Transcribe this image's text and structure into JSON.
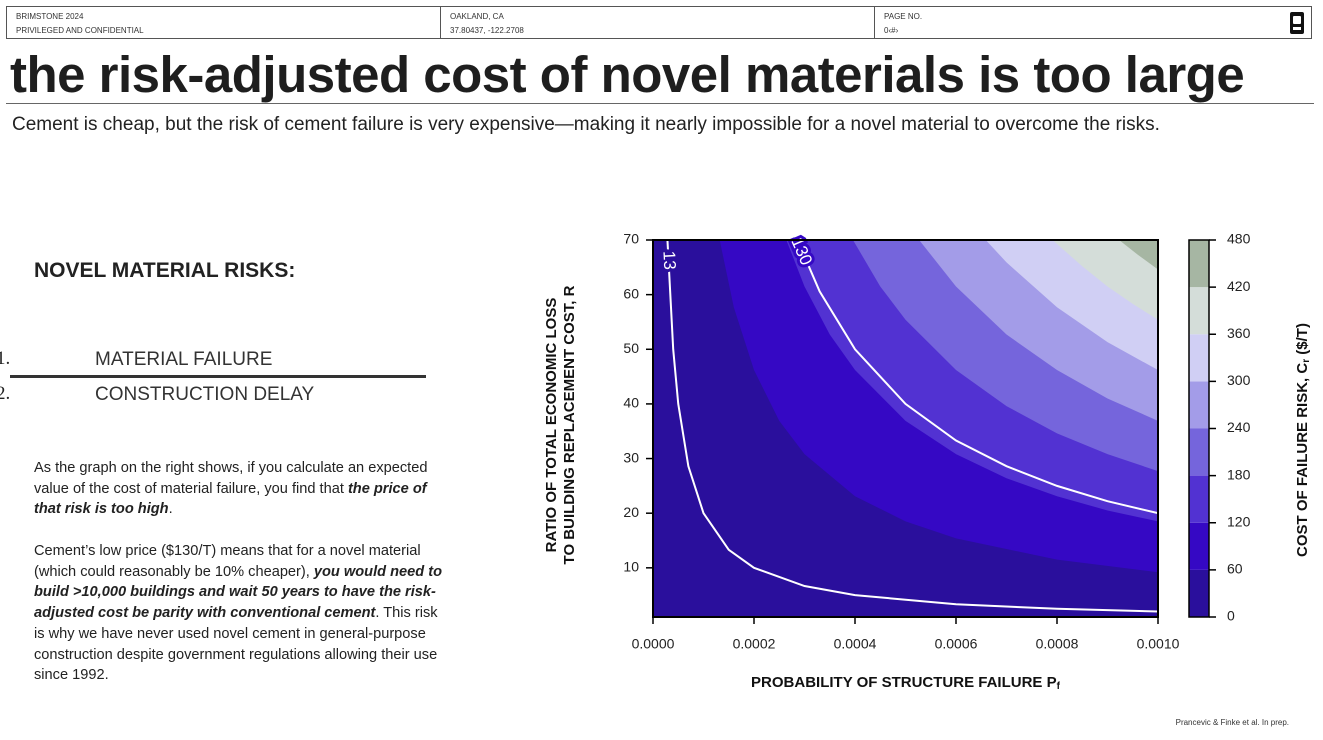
{
  "header": {
    "cells": [
      [
        "BRIMSTONE 2024",
        "PRIVILEGED AND CONFIDENTIAL"
      ],
      [
        "OAKLAND, CA",
        "37.80437, -122.2708"
      ],
      [
        "PAGE NO.",
        "0‹#›"
      ]
    ]
  },
  "title": "the risk-adjusted cost of novel materials is too large",
  "subtitle": "Cement is cheap, but the risk of cement failure is very expensive—making it nearly impossible for a novel material to overcome the risks.",
  "risks": {
    "heading": "NOVEL MATERIAL RISKS:",
    "items": [
      {
        "number": "1.",
        "text": "MATERIAL FAILURE"
      },
      {
        "number": "2.",
        "text": "CONSTRUCTION DELAY"
      }
    ]
  },
  "paragraphs": [
    [
      {
        "text": "As the graph on the right shows, if you calculate an expected value of the cost of material failure, you find that "
      },
      {
        "text": "the price of that risk is too high",
        "bold_italic": true
      },
      {
        "text": "."
      }
    ],
    [
      {
        "text": "Cement’s low price ($130/T) means that for a novel material (which could reasonably be 10% cheaper), "
      },
      {
        "text": "you would need to build >10,000 buildings and wait 50 years to have the risk-adjusted cost be parity with conventional cement",
        "bold_italic": true
      },
      {
        "text": ". This risk is why we have never used novel cement in general-purpose construction despite government regulations allowing their use since 1992."
      }
    ]
  ],
  "footnote": "Prancevic & Finke et al. In prep.",
  "chart_data": {
    "type": "contour",
    "xlabel": {
      "text": "PROBABILITY OF STRUCTURE FAILURE P",
      "subscript": "f"
    },
    "ylabel": [
      "RATIO OF TOTAL ECONOMIC LOSS",
      "TO BUILDING REPLACEMENT COST, R"
    ],
    "xlim": [
      0,
      0.001
    ],
    "ylim": [
      1,
      70
    ],
    "xticks": [
      {
        "value": 0,
        "label": "0.0000"
      },
      0.0002,
      0.0004,
      0.0006,
      0.0008,
      {
        "value": 0.001,
        "label": "0.0010"
      }
    ],
    "yticks": [
      10,
      20,
      30,
      40,
      50,
      60,
      70
    ],
    "colorbar": {
      "label": {
        "text": "COST OF FAILURE RISK, C",
        "subscript": "r",
        "suffix": " ($/T)"
      },
      "levels": [
        0,
        60,
        120,
        180,
        240,
        300,
        360,
        420,
        480
      ],
      "colors": [
        "#2a0f9c",
        "#3508c4",
        "#5232d2",
        "#7565dc",
        "#a39ce8",
        "#d0cff4",
        "#d4ddd9",
        "#a6b6a3"
      ]
    },
    "boundaries": [
      {
        "x": [
          0.000132,
          0.00016,
          0.0002,
          0.00025,
          0.0003,
          0.0004,
          0.0005,
          0.0006,
          0.0008,
          0.001
        ],
        "y": [
          70,
          57.7,
          46.2,
          36.9,
          30.8,
          23.1,
          18.5,
          15.4,
          11.5,
          9.2
        ]
      },
      {
        "x": [
          0.000264,
          0.0003,
          0.00035,
          0.0004,
          0.0005,
          0.0006,
          0.0007,
          0.0008,
          0.0009,
          0.001
        ],
        "y": [
          70,
          61.5,
          52.7,
          46.2,
          36.9,
          30.8,
          26.4,
          23.1,
          20.5,
          18.5
        ]
      },
      {
        "x": [
          0.000396,
          0.00045,
          0.0005,
          0.0006,
          0.0007,
          0.0008,
          0.0009,
          0.001
        ],
        "y": [
          70,
          61.5,
          55.4,
          46.2,
          39.6,
          34.6,
          30.8,
          27.7
        ]
      },
      {
        "x": [
          0.000527,
          0.0006,
          0.0007,
          0.0008,
          0.0009,
          0.001
        ],
        "y": [
          70,
          61.5,
          52.7,
          46.2,
          41,
          36.9
        ]
      },
      {
        "x": [
          0.000659,
          0.0007,
          0.0008,
          0.0009,
          0.001
        ],
        "y": [
          70,
          65.9,
          57.7,
          51.3,
          46.2
        ]
      },
      {
        "x": [
          0.000791,
          0.00085,
          0.0009,
          0.00095,
          0.001
        ],
        "y": [
          70,
          65.2,
          61.5,
          58.3,
          55.4
        ]
      },
      {
        "x": [
          0.000923,
          0.00096,
          0.001
        ],
        "y": [
          70,
          67.3,
          64.6
        ]
      }
    ],
    "contour_lines": [
      {
        "label": 13,
        "color": "#ffffff",
        "x": [
          2.86e-05,
          4e-05,
          5e-05,
          7e-05,
          0.0001,
          0.00015,
          0.0002,
          0.0003,
          0.0004,
          0.0006,
          0.0008,
          0.001
        ],
        "y": [
          70,
          50,
          40,
          28.6,
          20,
          13.3,
          10,
          6.67,
          5,
          3.33,
          2.5,
          2
        ]
      },
      {
        "label": 130,
        "color": "#ffffff",
        "x": [
          0.000286,
          0.00033,
          0.0004,
          0.0005,
          0.0006,
          0.0007,
          0.0008,
          0.0009,
          0.001
        ],
        "y": [
          70,
          60.6,
          50,
          40,
          33.3,
          28.6,
          25,
          22.2,
          20
        ]
      }
    ]
  }
}
